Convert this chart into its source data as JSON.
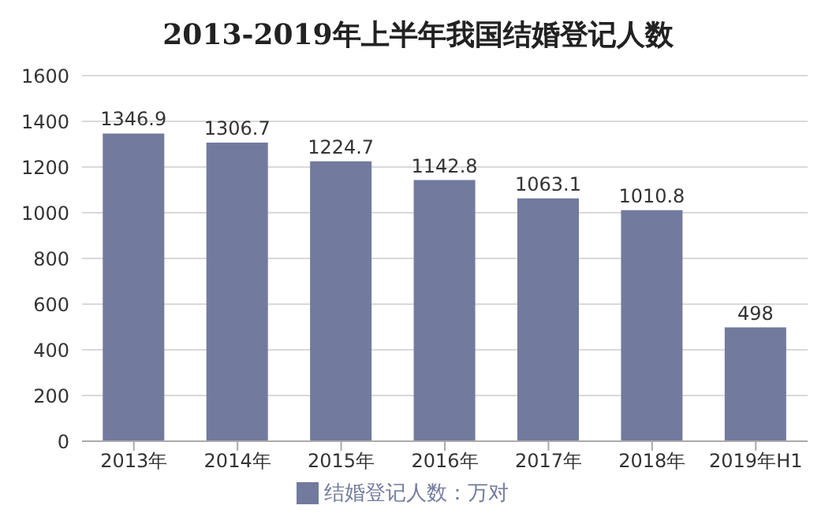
{
  "chart_data": {
    "type": "bar",
    "title": "2013-2019年上半年我国结婚登记人数",
    "categories": [
      "2013年",
      "2014年",
      "2015年",
      "2016年",
      "2017年",
      "2018年",
      "2019年H1"
    ],
    "series": [
      {
        "name": "结婚登记人数：万对",
        "color": "#727a9e",
        "values": [
          1346.9,
          1306.7,
          1224.7,
          1142.8,
          1063.1,
          1010.8,
          498
        ]
      }
    ],
    "ylim": [
      0,
      1600
    ],
    "yticks": [
      0,
      200,
      400,
      600,
      800,
      1000,
      1200,
      1400,
      1600
    ],
    "grid": "y",
    "legend": "bottom",
    "data_labels": true
  }
}
